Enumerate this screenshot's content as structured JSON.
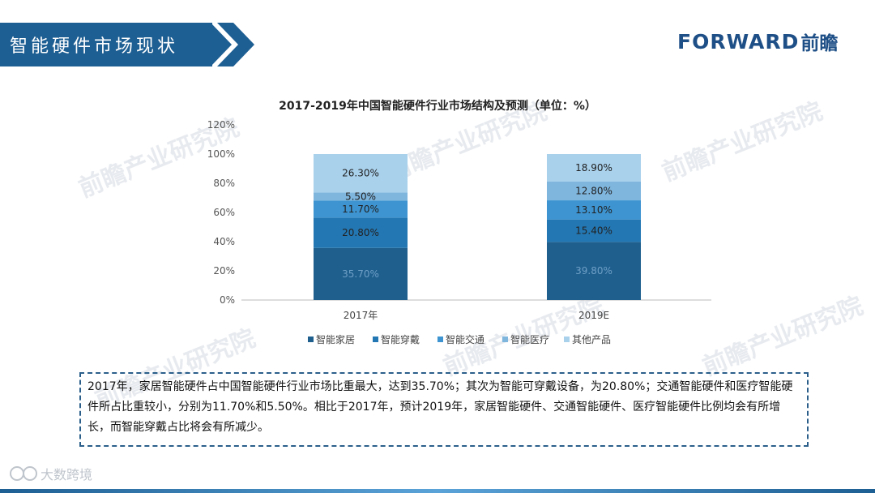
{
  "header": {
    "title": "智能硬件市场现状"
  },
  "brand": {
    "name_en": "FORWARD",
    "name_cn": "前瞻"
  },
  "watermark": "前瞻产业研究院",
  "footer": {
    "logo_text": "大数跨境"
  },
  "note": "2017年，家居智能硬件占中国智能硬件行业市场比重最大，达到35.70%；其次为智能可穿戴设备，为20.80%；交通智能硬件和医疗智能硬件所占比重较小，分别为11.70%和5.50%。相比于2017年，预计2019年，家居智能硬件、交通智能硬件、医疗智能硬件比例均会有所增长，而智能穿戴占比将会有所减少。",
  "colors": {
    "header": "#1e5f93",
    "brand": "#1e4f86"
  },
  "chart_data": {
    "type": "bar",
    "stacked": true,
    "title": "2017-2019年中国智能硬件行业市场结构及预测（单位：%）",
    "categories": [
      "2017年",
      "2019E"
    ],
    "y_ticks": [
      "0%",
      "20%",
      "40%",
      "60%",
      "80%",
      "100%",
      "120%"
    ],
    "ylim": [
      0,
      120
    ],
    "legend_position": "bottom",
    "series": [
      {
        "name": "智能家居",
        "values": [
          35.7,
          39.8
        ],
        "labels": [
          "35.70%",
          "39.80%"
        ],
        "color": "#1f5f8e"
      },
      {
        "name": "智能穿戴",
        "values": [
          20.8,
          15.4
        ],
        "labels": [
          "20.80%",
          "15.40%"
        ],
        "color": "#2377b3"
      },
      {
        "name": "智能交通",
        "values": [
          11.7,
          13.1
        ],
        "labels": [
          "11.70%",
          "13.10%"
        ],
        "color": "#3d94d1"
      },
      {
        "name": "智能医疗",
        "values": [
          5.5,
          12.8
        ],
        "labels": [
          "5.50%",
          "12.80%"
        ],
        "color": "#7fb6de"
      },
      {
        "name": "其他产品",
        "values": [
          26.3,
          18.9
        ],
        "labels": [
          "26.30%",
          "18.90%"
        ],
        "color": "#a9d1ec"
      }
    ]
  }
}
